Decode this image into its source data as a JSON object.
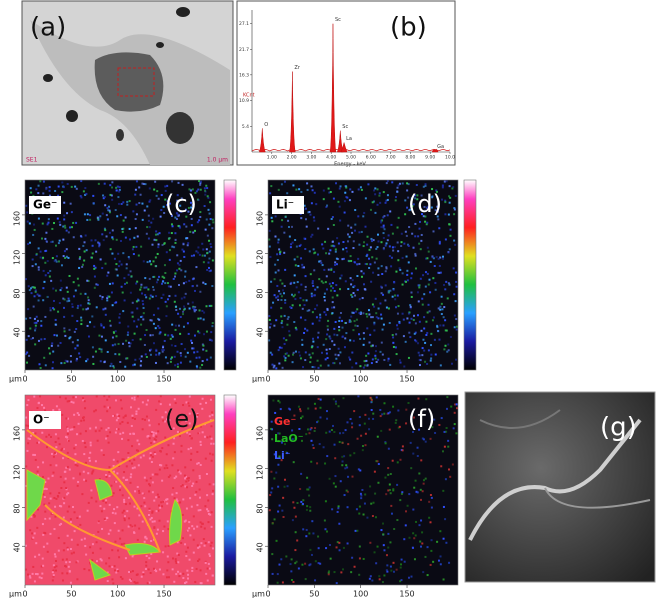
{
  "panels": {
    "a": {
      "label": "(a)",
      "footer_left": "SE1",
      "footer_right": "1.0 μm"
    },
    "b": {
      "label": "(b)",
      "y_axis_label": "KCnt",
      "x_axis_label": "Energy - keV",
      "xlim": [
        0,
        10
      ],
      "ylim": [
        0,
        30
      ],
      "yticks": [
        5.4,
        10.9,
        16.3,
        21.7,
        27.1
      ],
      "xticks": [
        {
          "value": 1,
          "label": "1.00"
        },
        {
          "value": 2,
          "label": "2.00"
        },
        {
          "value": 3,
          "label": "3.00"
        },
        {
          "value": 4,
          "label": "4.00"
        },
        {
          "value": 5,
          "label": "5.00"
        },
        {
          "value": 6,
          "label": "6.00"
        },
        {
          "value": 7,
          "label": "7.00"
        },
        {
          "value": 8,
          "label": "8.00"
        },
        {
          "value": 9,
          "label": "9.00"
        },
        {
          "value": 10,
          "label": "10.0"
        }
      ],
      "peaks": [
        {
          "name": "O",
          "energy": 0.52,
          "counts": 5
        },
        {
          "name": "Zr",
          "energy": 2.04,
          "counts": 17
        },
        {
          "name": "Sc",
          "energy": 4.09,
          "counts": 27.1
        },
        {
          "name": "Sc",
          "energy": 4.46,
          "counts": 4.5
        },
        {
          "name": "La",
          "energy": 4.65,
          "counts": 2
        },
        {
          "name": "Ga",
          "energy": 9.25,
          "counts": 0.3
        }
      ]
    },
    "c": {
      "label": "(c)",
      "ion": "Ge⁻"
    },
    "d": {
      "label": "(d)",
      "ion": "Li⁻"
    },
    "e": {
      "label": "(e)",
      "ion": "O⁻"
    },
    "f": {
      "label": "(f)",
      "legend": [
        {
          "name": "Ge⁻",
          "color": "#ff3030"
        },
        {
          "name": "LaO⁻",
          "color": "#22bb22"
        },
        {
          "name": "Li⁻",
          "color": "#3a5cff"
        }
      ]
    },
    "g": {
      "label": "(g)"
    }
  },
  "map_axes": {
    "unit": "μm",
    "xlim": [
      0,
      205
    ],
    "ylim": [
      0,
      196
    ],
    "xticks": [
      0,
      50,
      100,
      150
    ],
    "yticks": [
      40,
      80,
      120,
      160
    ]
  }
}
